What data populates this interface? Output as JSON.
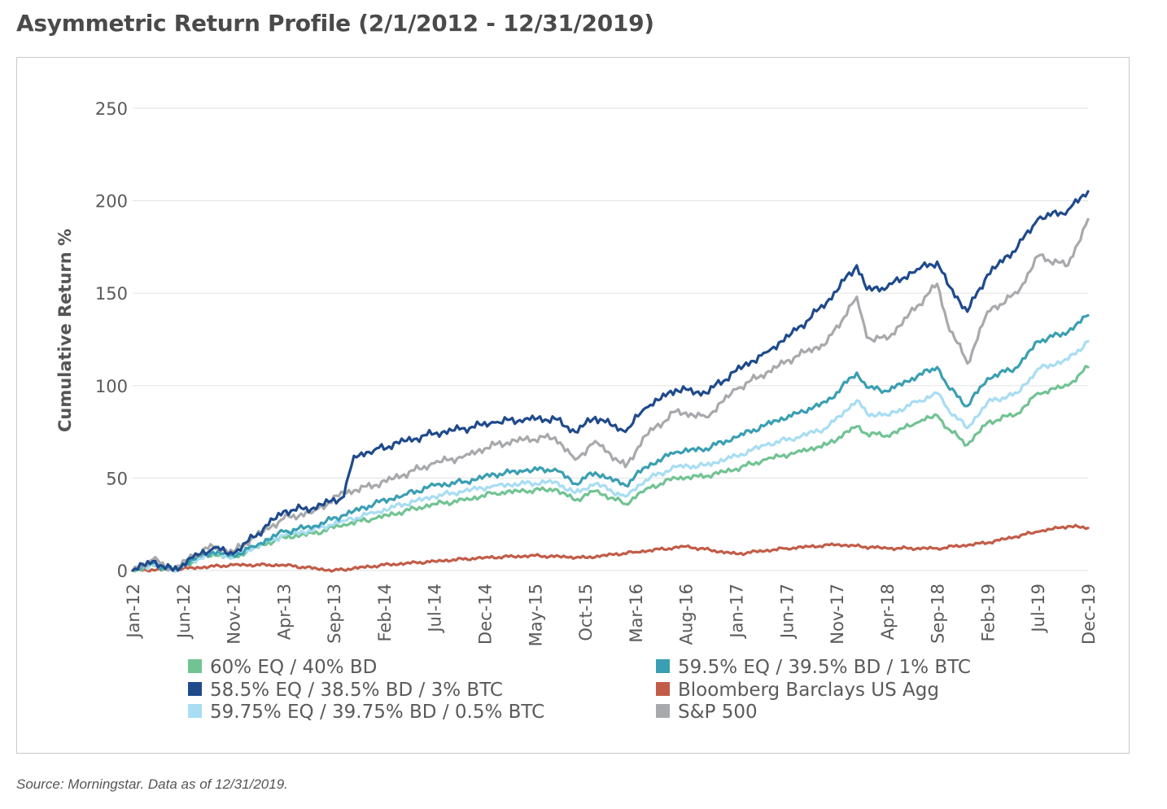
{
  "page": {
    "title": "Asymmetric Return Profile (2/1/2012 - 12/31/2019)",
    "source": "Source: Morningstar. Data as of 12/31/2019."
  },
  "chart_data": {
    "type": "line",
    "title": "",
    "xlabel": "",
    "ylabel": "Cumulative Return %",
    "ylim": [
      0,
      250
    ],
    "yticks": [
      0,
      50,
      100,
      150,
      200,
      250
    ],
    "xlim": [
      "2012-01",
      "2019-12"
    ],
    "xticks": [
      "Jan-12",
      "Jun-12",
      "Nov-12",
      "Apr-13",
      "Sep-13",
      "Feb-14",
      "Jul-14",
      "Dec-14",
      "May-15",
      "Oct-15",
      "Mar-16",
      "Aug-16",
      "Jan-17",
      "Jun-17",
      "Nov-17",
      "Apr-18",
      "Sep-18",
      "Feb-19",
      "Jul-19",
      "Dec-19"
    ],
    "grid": "horizontal",
    "legend_position": "bottom",
    "series": [
      {
        "name": "60% EQ / 40% BD",
        "color": "#72c393",
        "x": [
          "2012-01",
          "2012-03",
          "2012-05",
          "2012-07",
          "2012-09",
          "2012-11",
          "2013-01",
          "2013-04",
          "2013-07",
          "2013-10",
          "2014-01",
          "2014-04",
          "2014-07",
          "2014-10",
          "2015-01",
          "2015-04",
          "2015-07",
          "2015-09",
          "2015-11",
          "2016-02",
          "2016-04",
          "2016-07",
          "2016-10",
          "2017-01",
          "2017-04",
          "2017-07",
          "2017-10",
          "2018-01",
          "2018-02",
          "2018-04",
          "2018-07",
          "2018-09",
          "2018-10",
          "2018-12",
          "2019-02",
          "2019-05",
          "2019-07",
          "2019-10",
          "2019-12"
        ],
        "y": [
          0,
          3,
          0,
          5,
          9,
          7,
          12,
          18,
          20,
          25,
          28,
          32,
          36,
          38,
          42,
          43,
          44,
          38,
          43,
          36,
          44,
          50,
          51,
          55,
          60,
          64,
          68,
          78,
          74,
          73,
          80,
          84,
          77,
          68,
          80,
          85,
          96,
          100,
          110
        ]
      },
      {
        "name": "59.5% EQ / 39.5% BD / 1% BTC",
        "color": "#3a9fb2",
        "x": [
          "2012-01",
          "2012-03",
          "2012-05",
          "2012-07",
          "2012-09",
          "2012-11",
          "2013-01",
          "2013-04",
          "2013-07",
          "2013-10",
          "2014-01",
          "2014-04",
          "2014-07",
          "2014-10",
          "2015-01",
          "2015-04",
          "2015-07",
          "2015-09",
          "2015-11",
          "2016-02",
          "2016-04",
          "2016-07",
          "2016-10",
          "2017-01",
          "2017-04",
          "2017-07",
          "2017-10",
          "2018-01",
          "2018-02",
          "2018-04",
          "2018-07",
          "2018-09",
          "2018-10",
          "2018-12",
          "2019-02",
          "2019-05",
          "2019-07",
          "2019-10",
          "2019-12"
        ],
        "y": [
          0,
          4,
          0,
          6,
          10,
          8,
          13,
          21,
          24,
          30,
          36,
          41,
          46,
          48,
          52,
          54,
          55,
          47,
          53,
          46,
          56,
          64,
          66,
          72,
          79,
          85,
          91,
          107,
          99,
          97,
          105,
          110,
          100,
          89,
          104,
          110,
          124,
          129,
          138
        ]
      },
      {
        "name": "58.5% EQ / 38.5% BD / 3% BTC",
        "color": "#1f4a8c",
        "x": [
          "2012-01",
          "2012-03",
          "2012-05",
          "2012-07",
          "2012-09",
          "2012-11",
          "2013-01",
          "2013-04",
          "2013-07",
          "2013-10",
          "2013-11",
          "2014-01",
          "2014-04",
          "2014-07",
          "2014-10",
          "2015-01",
          "2015-04",
          "2015-07",
          "2015-09",
          "2015-11",
          "2016-02",
          "2016-04",
          "2016-07",
          "2016-10",
          "2017-01",
          "2017-04",
          "2017-07",
          "2017-10",
          "2018-01",
          "2018-02",
          "2018-04",
          "2018-07",
          "2018-09",
          "2018-10",
          "2018-12",
          "2019-02",
          "2019-05",
          "2019-07",
          "2019-10",
          "2019-12"
        ],
        "y": [
          0,
          5,
          0,
          7,
          12,
          9,
          18,
          32,
          34,
          40,
          62,
          65,
          70,
          74,
          77,
          80,
          82,
          82,
          75,
          83,
          75,
          88,
          98,
          96,
          108,
          118,
          130,
          145,
          165,
          152,
          153,
          163,
          167,
          155,
          140,
          160,
          175,
          190,
          195,
          205
        ]
      },
      {
        "name": "Bloomberg Barclays US Agg",
        "color": "#c25c48",
        "x": [
          "2012-01",
          "2012-06",
          "2012-11",
          "2013-04",
          "2013-09",
          "2014-02",
          "2014-07",
          "2014-12",
          "2015-05",
          "2015-10",
          "2016-03",
          "2016-08",
          "2017-01",
          "2017-06",
          "2017-11",
          "2018-04",
          "2018-09",
          "2019-02",
          "2019-07",
          "2019-10",
          "2019-12"
        ],
        "y": [
          0,
          1,
          3,
          3,
          0,
          3,
          5,
          7,
          8,
          7,
          10,
          13,
          9,
          12,
          14,
          12,
          12,
          15,
          21,
          24,
          23
        ]
      },
      {
        "name": "59.75% EQ / 39.75% BD / 0.5% BTC",
        "color": "#a8ddf3",
        "x": [
          "2012-01",
          "2012-03",
          "2012-05",
          "2012-07",
          "2012-09",
          "2012-11",
          "2013-01",
          "2013-04",
          "2013-07",
          "2013-10",
          "2014-01",
          "2014-04",
          "2014-07",
          "2014-10",
          "2015-01",
          "2015-04",
          "2015-07",
          "2015-09",
          "2015-11",
          "2016-02",
          "2016-04",
          "2016-07",
          "2016-10",
          "2017-01",
          "2017-04",
          "2017-07",
          "2017-10",
          "2018-01",
          "2018-02",
          "2018-04",
          "2018-07",
          "2018-09",
          "2018-10",
          "2018-12",
          "2019-02",
          "2019-05",
          "2019-07",
          "2019-10",
          "2019-12"
        ],
        "y": [
          0,
          3.5,
          0,
          5.5,
          9.5,
          7.5,
          12.5,
          19,
          22,
          27,
          31,
          36,
          40,
          43,
          46,
          47,
          48,
          42,
          47,
          40,
          49,
          56,
          57,
          62,
          68,
          72,
          77,
          92,
          85,
          84,
          91,
          96,
          88,
          77,
          91,
          96,
          109,
          114,
          124
        ]
      },
      {
        "name": "S&P 500",
        "color": "#a8a9ac",
        "x": [
          "2012-01",
          "2012-03",
          "2012-05",
          "2012-07",
          "2012-09",
          "2012-11",
          "2013-01",
          "2013-04",
          "2013-07",
          "2013-10",
          "2014-01",
          "2014-04",
          "2014-07",
          "2014-10",
          "2015-01",
          "2015-04",
          "2015-07",
          "2015-09",
          "2015-11",
          "2016-02",
          "2016-04",
          "2016-07",
          "2016-10",
          "2017-01",
          "2017-04",
          "2017-07",
          "2017-10",
          "2018-01",
          "2018-02",
          "2018-04",
          "2018-07",
          "2018-09",
          "2018-10",
          "2018-12",
          "2019-02",
          "2019-05",
          "2019-07",
          "2019-10",
          "2019-12"
        ],
        "y": [
          0,
          6,
          0,
          8,
          13,
          10,
          18,
          28,
          32,
          42,
          46,
          52,
          58,
          62,
          68,
          71,
          72,
          60,
          70,
          56,
          73,
          86,
          83,
          98,
          107,
          116,
          123,
          148,
          126,
          125,
          143,
          155,
          134,
          112,
          140,
          150,
          170,
          165,
          190
        ]
      }
    ],
    "legend": [
      "60% EQ / 40% BD",
      "59.5% EQ / 39.5% BD / 1% BTC",
      "58.5% EQ / 38.5% BD / 3% BTC",
      "Bloomberg Barclays US Agg",
      "59.75% EQ / 39.75% BD / 0.5% BTC",
      "S&P 500"
    ],
    "draw_order": [
      3,
      0,
      4,
      1,
      5,
      2
    ]
  }
}
